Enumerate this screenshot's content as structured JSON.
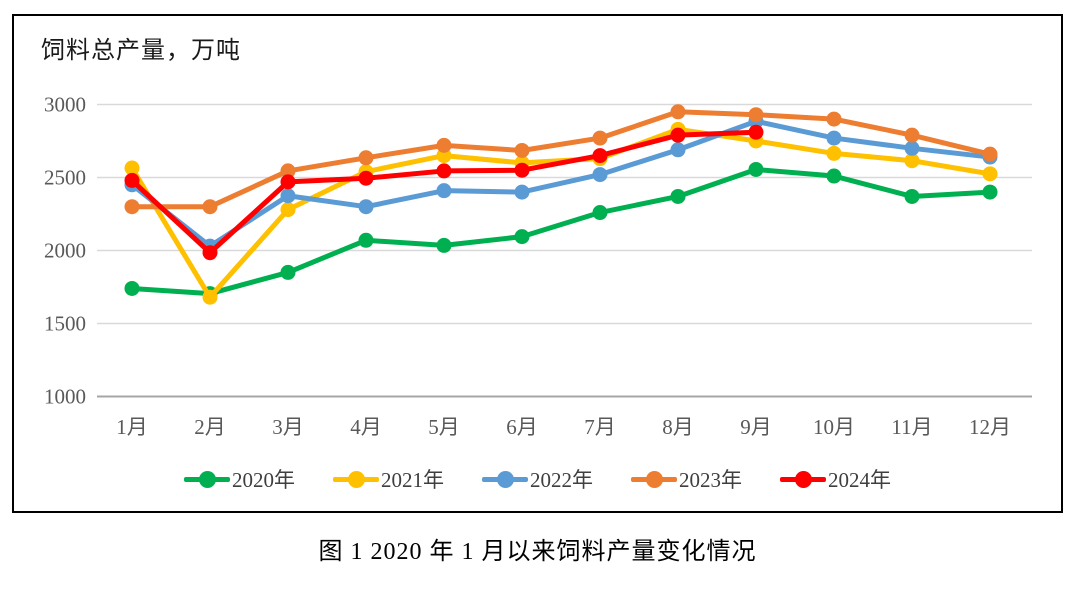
{
  "figure": {
    "axis_title": "饲料总产量，万吨",
    "caption": "图 1   2020 年 1 月以来饲料产量变化情况"
  },
  "chart_data": {
    "type": "line",
    "title": "饲料总产量，万吨",
    "categories": [
      "1月",
      "2月",
      "3月",
      "4月",
      "5月",
      "6月",
      "7月",
      "8月",
      "9月",
      "10月",
      "11月",
      "12月"
    ],
    "series": [
      {
        "name": "2020年",
        "color": "#00B050",
        "values": [
          1740,
          1705,
          1850,
          2070,
          2035,
          2095,
          2260,
          2370,
          2555,
          2510,
          2370,
          2400
        ]
      },
      {
        "name": "2021年",
        "color": "#FFC000",
        "values": [
          2565,
          1680,
          2280,
          2540,
          2650,
          2600,
          2630,
          2830,
          2750,
          2665,
          2615,
          2525
        ]
      },
      {
        "name": "2022年",
        "color": "#5B9BD5",
        "values": [
          2450,
          2030,
          2375,
          2300,
          2410,
          2400,
          2520,
          2690,
          2885,
          2770,
          2700,
          2640
        ]
      },
      {
        "name": "2023年",
        "color": "#ED7D31",
        "values": [
          2300,
          2300,
          2545,
          2635,
          2720,
          2685,
          2770,
          2950,
          2930,
          2900,
          2790,
          2660
        ]
      },
      {
        "name": "2024年",
        "color": "#FF0000",
        "values": [
          2480,
          1985,
          2470,
          2495,
          2545,
          2550,
          2650,
          2790,
          2810,
          null,
          null,
          null
        ]
      }
    ],
    "ylim": [
      1000,
      3000
    ],
    "yticks": [
      1000,
      1500,
      2000,
      2500,
      3000
    ],
    "ylabel": "饲料总产量，万吨",
    "xlabel": "",
    "legend_position": "bottom",
    "grid": "horizontal",
    "colors": {
      "gridline": "#D9D9D9",
      "axis_line": "#A6A6A6",
      "tick_label": "#595959",
      "border": "#000000"
    }
  }
}
